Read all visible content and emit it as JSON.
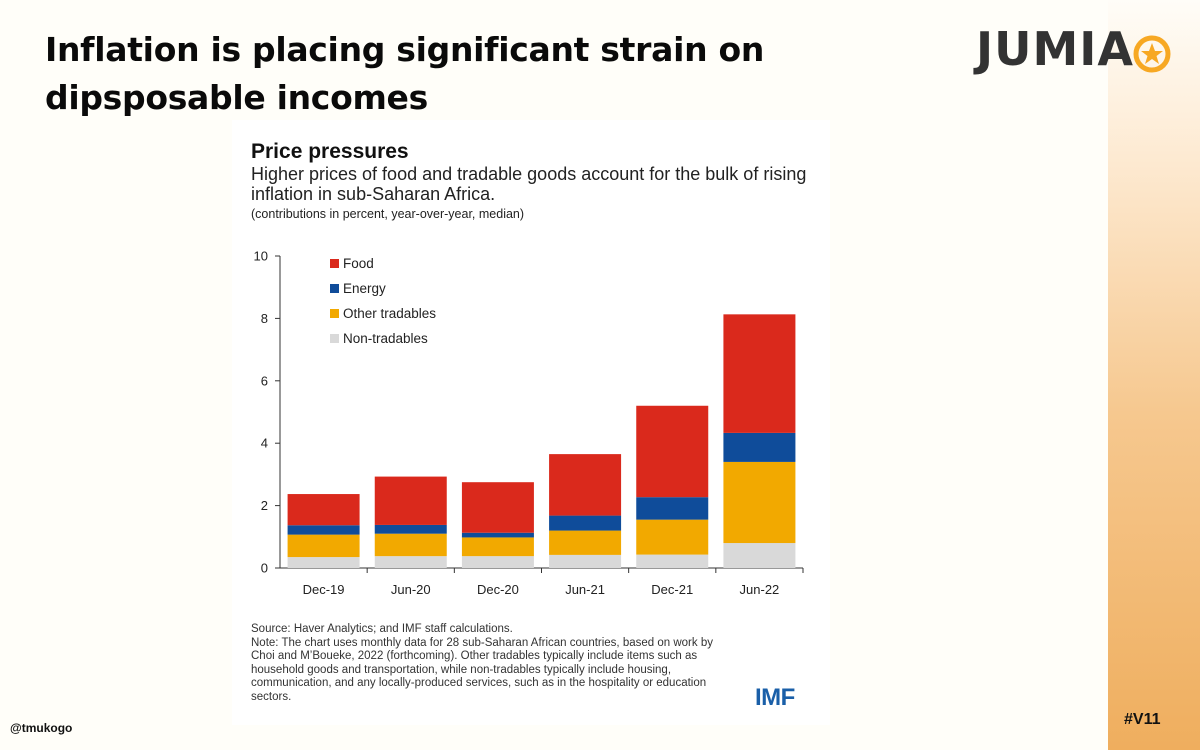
{
  "slide": {
    "title": "Inflation is placing significant strain on dipsposable incomes",
    "handle": "@tmukogo",
    "tag": "#V11",
    "logo_text": "JUMIA",
    "logo_icon": "star-icon",
    "accent_color": "#f7a823"
  },
  "source": {
    "source_line": "Source: Haver Analytics; and IMF staff calculations.",
    "note": "Note: The chart uses monthly data for 28 sub-Saharan African countries, based on work by Choi and M’Boueke, 2022 (forthcoming). Other tradables typically include items such as household goods and transportation, while non-tradables typically include housing, communication, and any locally-produced services, such as in the hospitality or education sectors.",
    "logo": "IMF"
  },
  "chart_data": {
    "type": "bar",
    "stacked": true,
    "title": "Price pressures",
    "subtitle": "Higher prices of food and tradable goods account for the bulk of rising inflation in sub-Saharan Africa.",
    "units": "(contributions in percent, year-over-year, median)",
    "xlabel": "",
    "ylabel": "",
    "ylim": [
      0,
      10
    ],
    "yticks": [
      0,
      2,
      4,
      6,
      8,
      10
    ],
    "grid": false,
    "legend_position": "top-left",
    "categories": [
      "Dec-19",
      "Jun-20",
      "Dec-20",
      "Jun-21",
      "Dec-21",
      "Jun-22"
    ],
    "series": [
      {
        "name": "Non-tradables",
        "color": "#d9d9d9",
        "values": [
          0.35,
          0.38,
          0.38,
          0.42,
          0.43,
          0.8
        ]
      },
      {
        "name": "Other tradables",
        "color": "#f2a900",
        "values": [
          0.72,
          0.72,
          0.6,
          0.78,
          1.12,
          2.6
        ]
      },
      {
        "name": "Energy",
        "color": "#0f4c9a",
        "values": [
          0.3,
          0.28,
          0.15,
          0.48,
          0.72,
          0.93
        ]
      },
      {
        "name": "Food",
        "color": "#da291c",
        "values": [
          1.0,
          1.55,
          1.62,
          1.97,
          2.93,
          3.8
        ]
      }
    ],
    "legend_order": [
      "Food",
      "Energy",
      "Other tradables",
      "Non-tradables"
    ]
  }
}
